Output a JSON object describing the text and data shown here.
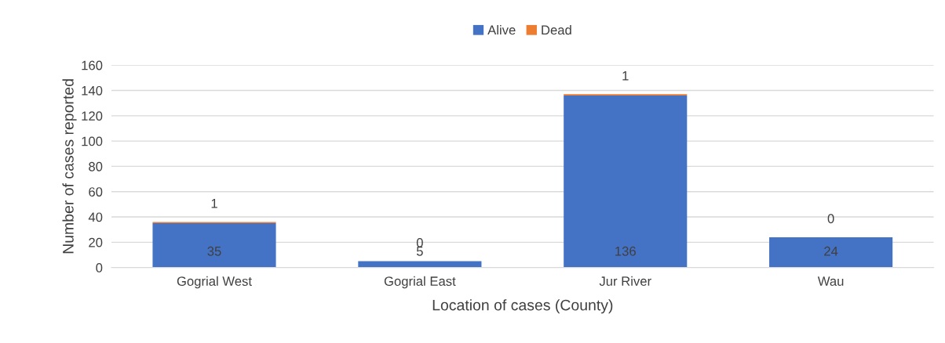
{
  "chart_data": {
    "type": "bar",
    "stacked": true,
    "xlabel": "Location of cases (County)",
    "ylabel": "Number of cases reported",
    "categories": [
      "Gogrial West",
      "Gogrial East",
      "Jur River",
      "Wau"
    ],
    "series": [
      {
        "name": "Alive",
        "color": "#4472c4",
        "values": [
          35,
          5,
          136,
          24
        ]
      },
      {
        "name": "Dead",
        "color": "#ed7d31",
        "values": [
          1,
          0,
          1,
          0
        ]
      }
    ],
    "ylim": [
      0,
      160
    ],
    "yticks": [
      0,
      20,
      40,
      60,
      80,
      100,
      120,
      140,
      160
    ],
    "grid": "y",
    "legend": "top",
    "data_labels": true
  }
}
